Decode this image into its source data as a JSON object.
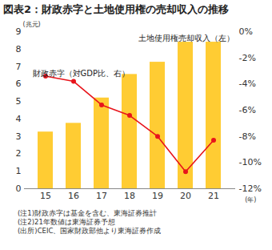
{
  "chart_data": {
    "type": "bar",
    "title": "図表2：財政赤字と土地使用権の売却収入の推移",
    "y_label": "(兆元)",
    "x_label": "(年)",
    "categories": [
      "15",
      "16",
      "17",
      "18",
      "19",
      "20",
      "21"
    ],
    "series": [
      {
        "name": "土地使用権売却収入（左）",
        "type": "bar",
        "color": "#FFCC33",
        "values": [
          3.25,
          3.75,
          5.2,
          6.55,
          7.25,
          8.4,
          8.4
        ]
      },
      {
        "name": "財政赤字（対GDP比、右）",
        "type": "line",
        "color": "#E8141B",
        "marker": "circle",
        "axis": "y2",
        "values": [
          -3.4,
          -3.8,
          -5.6,
          -6.4,
          -8.0,
          -10.7,
          -8.3
        ]
      }
    ],
    "ylim": [
      0,
      9
    ],
    "yticks": [
      0,
      1,
      2,
      3,
      4,
      5,
      6,
      7,
      8,
      9
    ],
    "y2lim": [
      -12,
      0
    ],
    "y2ticks": [
      {
        "value": 0,
        "label": "0%"
      },
      {
        "value": -2,
        "label": "-2%"
      },
      {
        "value": -4,
        "label": "-4%"
      },
      {
        "value": -6,
        "label": "-6%"
      },
      {
        "value": -8,
        "label": "-8%"
      },
      {
        "value": -10,
        "label": "-10%"
      },
      {
        "value": -12,
        "label": "-12%"
      }
    ],
    "grid": false,
    "notes": [
      "(注1)財政赤字は基金を含む、東海証券推計",
      "(注2)21年数値は東海証券予想",
      "(出所)CEIC、国家財政部他より東海証券作成"
    ]
  }
}
